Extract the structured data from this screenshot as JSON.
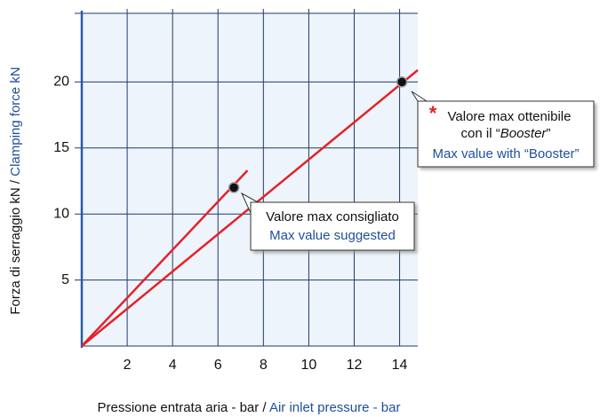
{
  "chart_data": {
    "type": "line",
    "xlabel": [
      "Pressione entrata aria - bar / ",
      "Air inlet pressure - bar"
    ],
    "ylabel": [
      "Forza di serraggio kN  /  ",
      "Clamping force kN"
    ],
    "xlim": [
      0,
      14.8
    ],
    "ylim": [
      0,
      25.2
    ],
    "xticks": [
      2,
      4,
      6,
      8,
      10,
      12,
      14
    ],
    "yticks": [
      5,
      10,
      15,
      20
    ],
    "grid": true,
    "series": [
      {
        "color": "#e3222b",
        "x": [
          0,
          7.3
        ],
        "values": [
          0,
          13.3
        ],
        "marker": {
          "x": 6.7,
          "y": 12
        }
      },
      {
        "color": "#e3222b",
        "x": [
          0,
          14.8
        ],
        "values": [
          0,
          20.9
        ],
        "marker": {
          "x": 14.1,
          "y": 20
        }
      }
    ],
    "annotations": [
      {
        "line1": "Valore max consigliato",
        "line2": "Max value suggested"
      },
      {
        "star": "*",
        "line1": "Valore max ottenibile",
        "line2": [
          "con il “",
          "Booster",
          "”"
        ],
        "line3": "Max value with “Booster”"
      }
    ]
  }
}
